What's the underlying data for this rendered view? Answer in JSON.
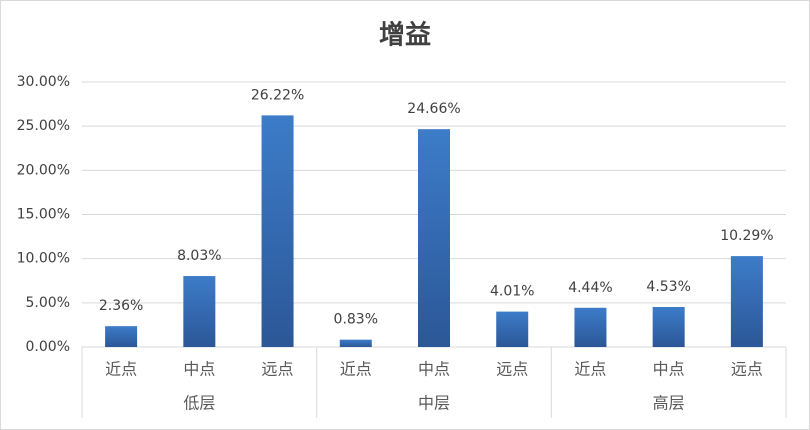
{
  "chart_data": {
    "type": "bar",
    "title": "增益",
    "categories": [
      "近点",
      "中点",
      "远点",
      "近点",
      "中点",
      "远点",
      "近点",
      "中点",
      "远点"
    ],
    "groups": [
      "低层",
      "中层",
      "高层"
    ],
    "values": [
      2.36,
      8.03,
      26.22,
      0.83,
      24.66,
      4.01,
      4.44,
      4.53,
      10.29
    ],
    "value_labels": [
      "2.36%",
      "8.03%",
      "26.22%",
      "0.83%",
      "24.66%",
      "4.01%",
      "4.44%",
      "4.53%",
      "10.29%"
    ],
    "color": "#3d7cc9",
    "ylim": [
      0,
      30
    ],
    "yticks": [
      {
        "value": 0,
        "label": "0.00%"
      },
      {
        "value": 5,
        "label": "5.00%"
      },
      {
        "value": 10,
        "label": "10.00%"
      },
      {
        "value": 15,
        "label": "15.00%"
      },
      {
        "value": 20,
        "label": "20.00%"
      },
      {
        "value": 25,
        "label": "25.00%"
      },
      {
        "value": 30,
        "label": "30.00%"
      }
    ],
    "grid": true
  }
}
